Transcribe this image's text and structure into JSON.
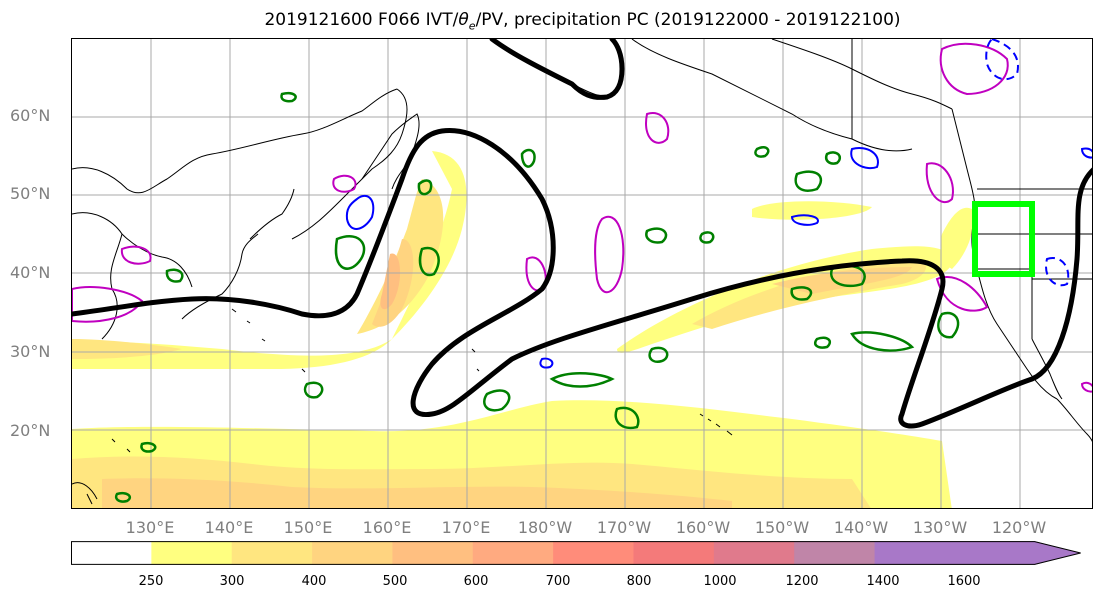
{
  "title": {
    "prefix": "2019121600 F066 IVT/",
    "theta": "θ",
    "theta_sub": "e",
    "suffix": "/PV, precipitation PC (2019122000 - 2019122100)"
  },
  "map": {
    "lat_labels": [
      "60°N",
      "50°N",
      "40°N",
      "30°N",
      "20°N"
    ],
    "lon_labels": [
      "130°E",
      "140°E",
      "150°E",
      "160°E",
      "170°E",
      "180°W",
      "170°W",
      "160°W",
      "150°W",
      "140°W",
      "130°W",
      "120°W"
    ],
    "colors": {
      "coastline": "#000000",
      "ivt_contour": "#000000",
      "pv_contour": "#008000",
      "theta_e_negative": "#0000ff",
      "theta_e_positive": "#c000c0",
      "highlight_box": "#00ff00",
      "gridline": "#a9a9a9",
      "tick_label": "#7f7f7f"
    }
  },
  "colorbar": {
    "ticks": [
      "250",
      "300",
      "400",
      "500",
      "600",
      "700",
      "800",
      "1000",
      "1200",
      "1400",
      "1600"
    ],
    "colors": [
      "#ffffff",
      "#ffff80",
      "#ffe680",
      "#ffd480",
      "#ffbf80",
      "#ffaa80",
      "#ff8c7a",
      "#f47a7a",
      "#e07a8c",
      "#c085a8",
      "#a878c8"
    ]
  }
}
